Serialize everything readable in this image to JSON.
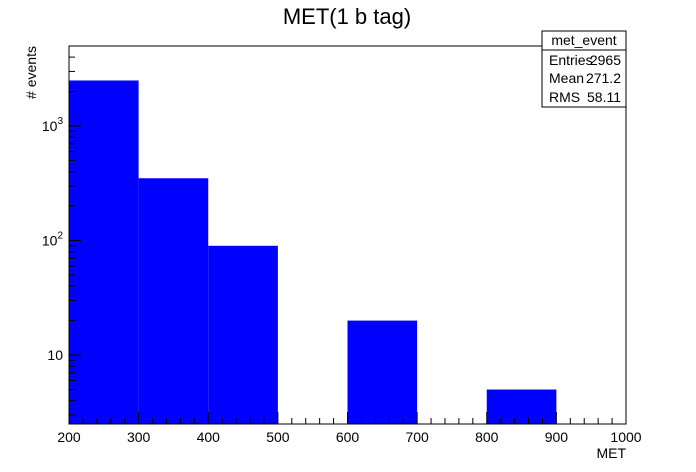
{
  "chart_data": {
    "type": "bar",
    "title": "MET(1 b tag)",
    "xlabel": "MET",
    "ylabel": "# events",
    "x_log": false,
    "y_log": true,
    "xlim": [
      200,
      1000
    ],
    "ylim": [
      2.5,
      5000
    ],
    "bin_edges": [
      200,
      300,
      400,
      500,
      600,
      700,
      800,
      900,
      1000
    ],
    "values": [
      2500,
      350,
      90,
      0,
      20,
      0,
      5,
      0
    ],
    "bar_color": "#0000ff",
    "x_ticks": [
      "200",
      "300",
      "400",
      "500",
      "600",
      "700",
      "800",
      "900",
      "1000"
    ],
    "y_ticks": [
      {
        "value": 10,
        "base": "10",
        "exp": ""
      },
      {
        "value": 100,
        "base": "10",
        "exp": "2"
      },
      {
        "value": 1000,
        "base": "10",
        "exp": "3"
      }
    ],
    "grid": false,
    "legend": "none",
    "stats_box": {
      "name": "met_event",
      "rows": [
        {
          "label": "Entries",
          "value": "2965"
        },
        {
          "label": "Mean",
          "value": "271.2"
        },
        {
          "label": "RMS",
          "value": "58.11"
        }
      ]
    }
  }
}
